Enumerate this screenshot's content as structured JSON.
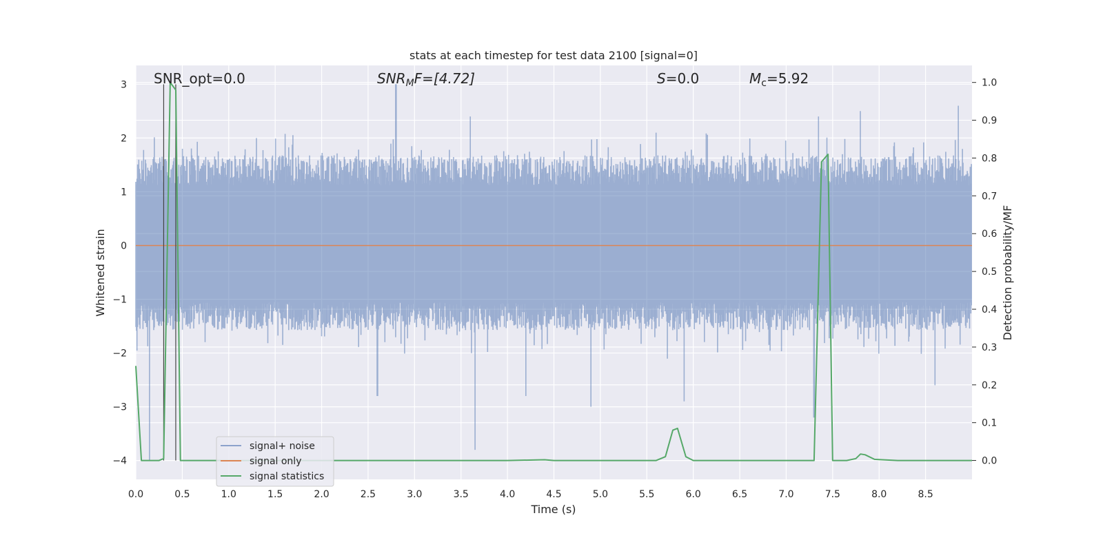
{
  "chart_data": {
    "type": "line",
    "title": "stats at each timestep for test data 2100 [signal=0]",
    "xlabel": "Time (s)",
    "ylabel": "Whitened strain",
    "y2label": "Detection probability/MF",
    "xlim": [
      0.0,
      9.0
    ],
    "ylim": [
      -4.35,
      3.35
    ],
    "y2lim": [
      -0.05,
      1.045
    ],
    "x_ticks": [
      "0.0",
      "0.5",
      "1.0",
      "1.5",
      "2.0",
      "2.5",
      "3.0",
      "3.5",
      "4.0",
      "4.5",
      "5.0",
      "5.5",
      "6.0",
      "6.5",
      "7.0",
      "7.5",
      "8.0",
      "8.5"
    ],
    "y_ticks": [
      "3",
      "2",
      "1",
      "0",
      "−1",
      "−2",
      "−3",
      "−4"
    ],
    "y2_ticks": [
      "1.0",
      "0.9",
      "0.8",
      "0.7",
      "0.6",
      "0.5",
      "0.4",
      "0.3",
      "0.2",
      "0.1",
      "0.0"
    ],
    "grid": true,
    "legend_position": "lower-left",
    "annotations": {
      "snr_opt": "SNR_opt=0.0",
      "snr_mf_sym": "SNR",
      "snr_mf_sub": "M",
      "snr_mf_rest": "F=[4.72]",
      "s_sym": "S",
      "s_rest": "=0.0",
      "mc_sym": "M",
      "mc_sub": "c",
      "mc_rest": "=5.92"
    },
    "series": [
      {
        "name": "signal+ noise",
        "color": "#4c72b0",
        "description_level": "noise band",
        "envelope": {
          "typical_upper": 1.6,
          "typical_lower": -1.5,
          "peaks_up": [
            [
              0.5,
              1.8
            ],
            [
              1.3,
              2.0
            ],
            [
              2.8,
              3.0
            ],
            [
              3.6,
              2.4
            ],
            [
              5.6,
              2.1
            ],
            [
              7.35,
              2.4
            ],
            [
              7.8,
              2.5
            ],
            [
              8.85,
              2.6
            ]
          ],
          "peaks_down": [
            [
              0.15,
              -4.0
            ],
            [
              2.6,
              -2.8
            ],
            [
              3.65,
              -3.8
            ],
            [
              4.2,
              -2.8
            ],
            [
              4.9,
              -3.0
            ],
            [
              5.9,
              -2.9
            ],
            [
              7.3,
              -3.2
            ],
            [
              8.6,
              -2.6
            ]
          ]
        }
      },
      {
        "name": "signal only",
        "color": "#dd8452",
        "x": [
          0.0,
          9.0
        ],
        "y": [
          0.0,
          0.0
        ]
      },
      {
        "name": "signal statistics",
        "color": "#55a868",
        "axis": "y2",
        "x": [
          0.0,
          0.06,
          0.15,
          0.25,
          0.3,
          0.37,
          0.43,
          0.48,
          0.5,
          0.6,
          1.0,
          2.0,
          3.0,
          4.0,
          4.4,
          4.5,
          5.0,
          5.5,
          5.6,
          5.7,
          5.78,
          5.83,
          5.92,
          6.0,
          7.0,
          7.3,
          7.38,
          7.45,
          7.5,
          7.65,
          7.75,
          7.8,
          7.85,
          7.95,
          8.2,
          8.5,
          9.0
        ],
        "y": [
          0.25,
          0.0,
          0.0,
          0.0,
          0.005,
          1.0,
          0.98,
          0.0,
          0.0,
          0.0,
          0.0,
          0.0,
          0.0,
          0.0,
          0.002,
          0.0,
          0.0,
          0.0,
          0.0,
          0.01,
          0.08,
          0.085,
          0.01,
          0.0,
          0.0,
          0.0,
          0.79,
          0.81,
          0.0,
          0.0,
          0.005,
          0.017,
          0.015,
          0.003,
          0.0,
          0.0,
          0.0
        ]
      }
    ],
    "vertical_markers_x": [
      0.3,
      0.43
    ]
  }
}
